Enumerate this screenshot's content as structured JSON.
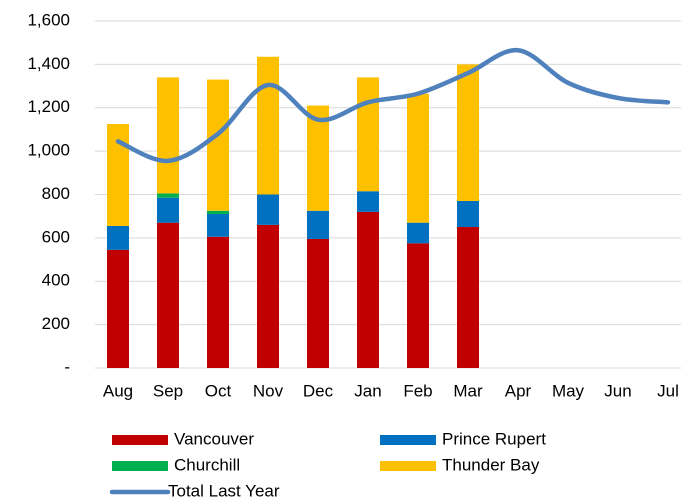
{
  "chart_data": {
    "type": "bar",
    "categories": [
      "Aug",
      "Sep",
      "Oct",
      "Nov",
      "Dec",
      "Jan",
      "Feb",
      "Mar",
      "Apr",
      "May",
      "Jun",
      "Jul"
    ],
    "series": [
      {
        "name": "Vancouver",
        "color": "#c00000",
        "values": [
          545,
          670,
          605,
          660,
          595,
          720,
          575,
          650,
          null,
          null,
          null,
          null
        ]
      },
      {
        "name": "Prince Rupert",
        "color": "#0070c0",
        "values": [
          110,
          115,
          105,
          140,
          130,
          95,
          95,
          120,
          null,
          null,
          null,
          null
        ]
      },
      {
        "name": "Churchill",
        "color": "#00b050",
        "values": [
          0,
          20,
          15,
          0,
          0,
          0,
          0,
          0,
          null,
          null,
          null,
          null
        ]
      },
      {
        "name": "Thunder Bay",
        "color": "#ffc000",
        "values": [
          470,
          535,
          605,
          635,
          485,
          525,
          595,
          630,
          null,
          null,
          null,
          null
        ]
      },
      {
        "name": "Total Last Year",
        "color": "#4f81bd",
        "type": "line",
        "values": [
          1045,
          955,
          1080,
          1305,
          1145,
          1225,
          1265,
          1360,
          1465,
          1315,
          1245,
          1225
        ]
      }
    ],
    "stacked": true,
    "ylim": [
      0,
      1600
    ],
    "yticks": [
      {
        "value": 0,
        "label": "-"
      },
      200,
      400,
      600,
      800,
      {
        "value": 1000,
        "label": "1,000"
      },
      {
        "value": 1200,
        "label": "1,200"
      },
      {
        "value": 1400,
        "label": "1,400"
      },
      {
        "value": 1600,
        "label": "1,600"
      }
    ],
    "grid": true
  }
}
